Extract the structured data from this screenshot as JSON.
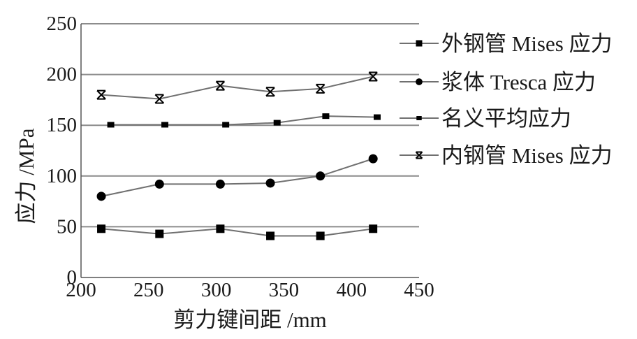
{
  "chart_data": {
    "type": "line",
    "xlabel": "剪力键间距 /mm",
    "ylabel": "应力 /MPa",
    "xlim": [
      200,
      450
    ],
    "ylim": [
      0,
      250
    ],
    "x_ticks": [
      "200",
      "250",
      "300",
      "350",
      "400",
      "450"
    ],
    "y_ticks": [
      "0",
      "50",
      "100",
      "150",
      "200",
      "250"
    ],
    "grid": "horizontal",
    "legend_position": "right",
    "colors": {
      "line": "#707070",
      "marker": "#000000",
      "grid": "#8c8c8c",
      "axis": "#555555"
    },
    "series": [
      {
        "name": "外钢管 Mises 应力",
        "marker": "square",
        "x": [
          215,
          258,
          303,
          340,
          377,
          416
        ],
        "y": [
          48,
          43,
          48,
          41,
          41,
          48
        ]
      },
      {
        "name": "浆体 Tresca 应力",
        "marker": "circle",
        "x": [
          215,
          258,
          303,
          340,
          377,
          416
        ],
        "y": [
          80,
          92,
          92,
          93,
          100,
          117
        ]
      },
      {
        "name": "名义平均应力",
        "marker": "small-square",
        "x": [
          222,
          262,
          307,
          345,
          381,
          419
        ],
        "y": [
          150.5,
          150.5,
          150.5,
          152.5,
          159,
          158
        ]
      },
      {
        "name": "内钢管 Mises 应力",
        "marker": "x-star",
        "x": [
          215,
          258,
          303,
          340,
          377,
          416
        ],
        "y": [
          180,
          176,
          189,
          183,
          186,
          198
        ]
      }
    ]
  }
}
